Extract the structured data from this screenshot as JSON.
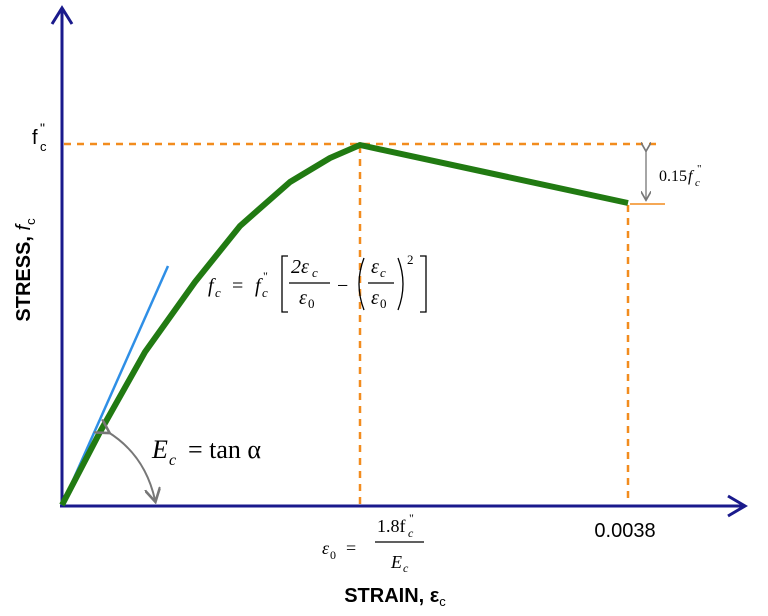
{
  "y_axis_label": {
    "text": "STRESS, ",
    "var": "f",
    "sub": "c"
  },
  "x_axis_label": {
    "text": "STRAIN, ε",
    "sub": "c"
  },
  "peak_stress": {
    "var": "f",
    "sup": "\"",
    "sub": "c"
  },
  "ultimate_strain": "0.0038",
  "stress_drop": {
    "coef": "0.15",
    "var": "f",
    "sub": "c",
    "sup": "\""
  },
  "modulus": {
    "var": "E",
    "sub": "c",
    "rest": "= tan α"
  },
  "formula": {
    "lhs": "f",
    "lhs_sub": "c",
    "eq": "=",
    "f": "f",
    "f_sub": "c",
    "f_sup": "\"",
    "num1": "2ε",
    "num1_sub": "c",
    "den1": "ε",
    "den1_sub": "0",
    "minus": "−",
    "num2": "ε",
    "num2_sub": "c",
    "den2": "ε",
    "den2_sub": "0",
    "exp": "2"
  },
  "peak_strain": {
    "lhs": "ε",
    "lhs_sub": "0",
    "eq": "=",
    "num": "1.8f",
    "num_sub": "c",
    "num_sup": "\"",
    "den": "E",
    "den_sub": "c"
  }
}
